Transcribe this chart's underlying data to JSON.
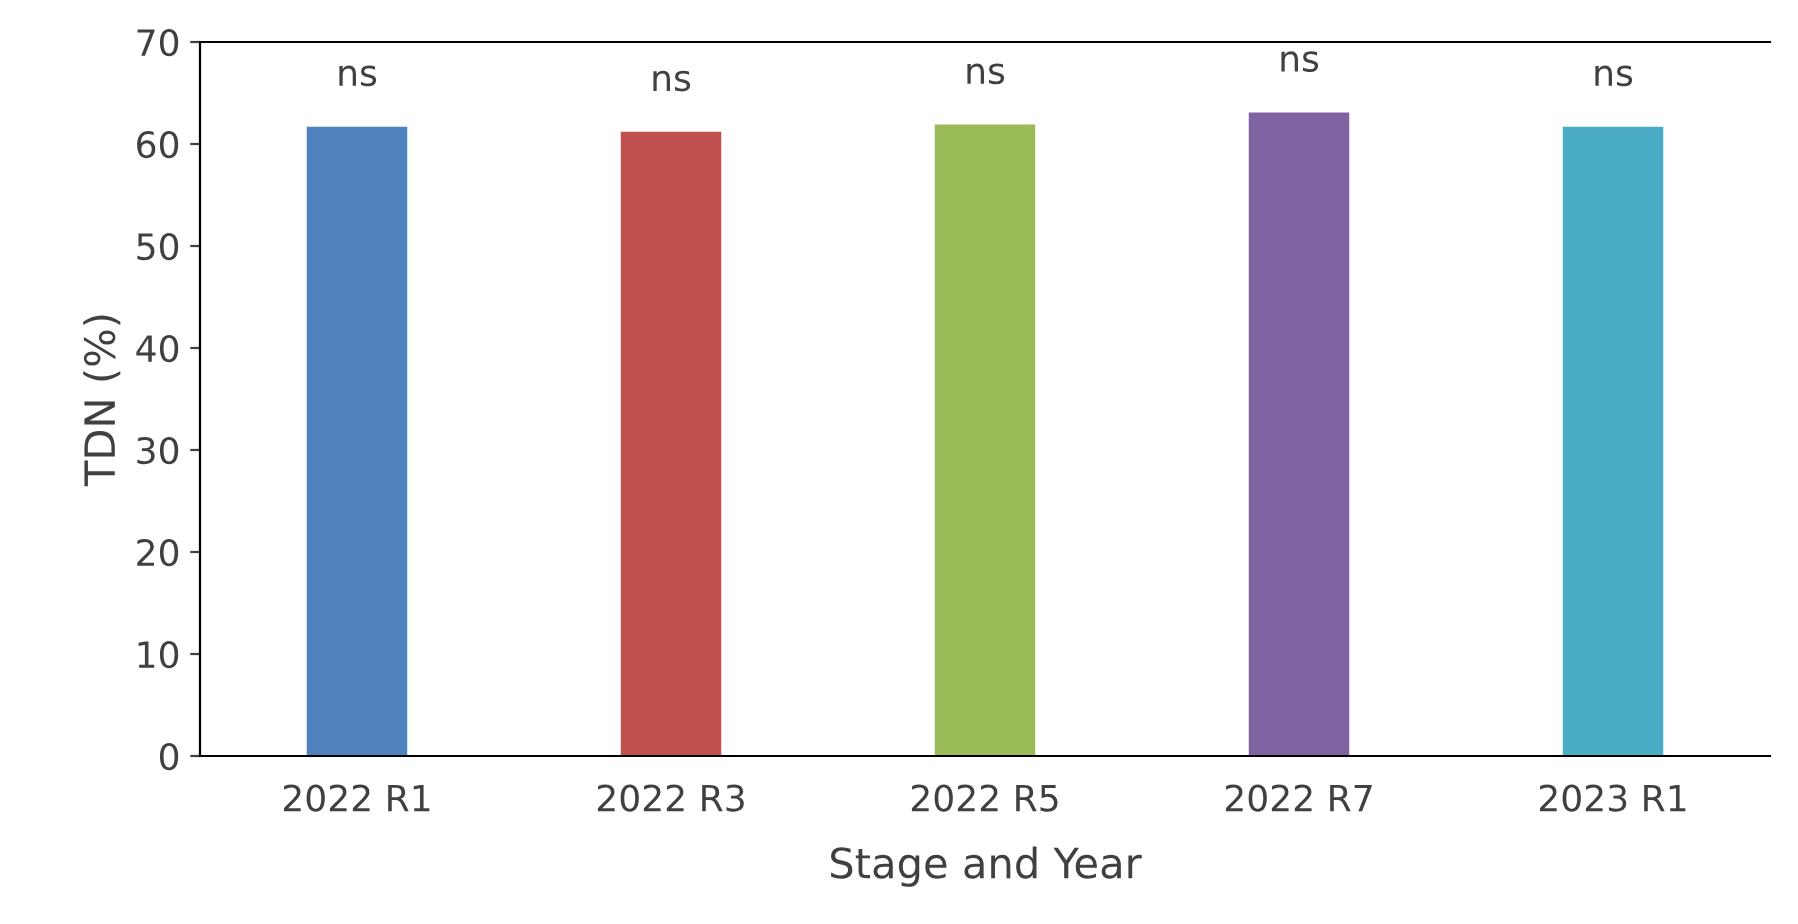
{
  "chart_data": {
    "type": "bar",
    "xlabel": "Stage and Year",
    "ylabel": "TDN (%)",
    "categories": [
      "2022 R1",
      "2022 R3",
      "2022 R5",
      "2022 R7",
      "2023 R1"
    ],
    "values": [
      61.7,
      61.2,
      61.9,
      63.1,
      61.7
    ],
    "colors": [
      "#4f81bd",
      "#c0504d",
      "#9bbb59",
      "#8064a2",
      "#4bacc6"
    ],
    "value_labels": [
      "ns",
      "ns",
      "ns",
      "ns",
      "ns"
    ],
    "ylim": [
      0,
      70
    ],
    "yticks": [
      0,
      10,
      20,
      30,
      40,
      50,
      60,
      70
    ],
    "grid": false
  }
}
